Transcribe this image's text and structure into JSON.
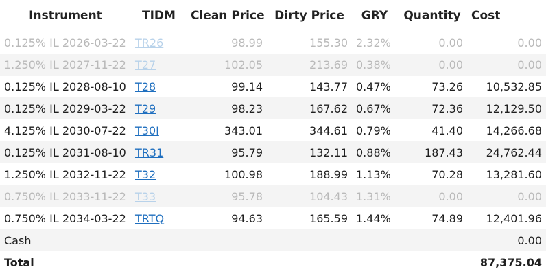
{
  "table": {
    "headers": [
      "Instrument",
      "TIDM",
      "Clean Price",
      "Dirty Price",
      "GRY",
      "Quantity",
      "Cost"
    ],
    "rows": [
      {
        "instrument": "0.125% IL 2026-03-22",
        "tidm": "TR26",
        "clean": "98.99",
        "dirty": "155.30",
        "gry": "2.32%",
        "qty": "0.00",
        "cost": "0.00",
        "muted": true
      },
      {
        "instrument": "1.250% IL 2027-11-22",
        "tidm": "T27",
        "clean": "102.05",
        "dirty": "213.69",
        "gry": "0.38%",
        "qty": "0.00",
        "cost": "0.00",
        "muted": true
      },
      {
        "instrument": "0.125% IL 2028-08-10",
        "tidm": "T28",
        "clean": "99.14",
        "dirty": "143.77",
        "gry": "0.47%",
        "qty": "73.26",
        "cost": "10,532.85",
        "muted": false
      },
      {
        "instrument": "0.125% IL 2029-03-22",
        "tidm": "T29",
        "clean": "98.23",
        "dirty": "167.62",
        "gry": "0.67%",
        "qty": "72.36",
        "cost": "12,129.50",
        "muted": false
      },
      {
        "instrument": "4.125% IL 2030-07-22",
        "tidm": "T30I",
        "clean": "343.01",
        "dirty": "344.61",
        "gry": "0.79%",
        "qty": "41.40",
        "cost": "14,266.68",
        "muted": false
      },
      {
        "instrument": "0.125% IL 2031-08-10",
        "tidm": "TR31",
        "clean": "95.79",
        "dirty": "132.11",
        "gry": "0.88%",
        "qty": "187.43",
        "cost": "24,762.44",
        "muted": false
      },
      {
        "instrument": "1.250% IL 2032-11-22",
        "tidm": "T32",
        "clean": "100.98",
        "dirty": "188.99",
        "gry": "1.13%",
        "qty": "70.28",
        "cost": "13,281.60",
        "muted": false
      },
      {
        "instrument": "0.750% IL 2033-11-22",
        "tidm": "T33",
        "clean": "95.78",
        "dirty": "104.43",
        "gry": "1.31%",
        "qty": "0.00",
        "cost": "0.00",
        "muted": true
      },
      {
        "instrument": "0.750% IL 2034-03-22",
        "tidm": "TRTQ",
        "clean": "94.63",
        "dirty": "165.59",
        "gry": "1.44%",
        "qty": "74.89",
        "cost": "12,401.96",
        "muted": false
      }
    ],
    "cash": {
      "label": "Cash",
      "cost": "0.00"
    },
    "total": {
      "label": "Total",
      "cost": "87,375.04"
    }
  },
  "colors": {
    "link": "#1f6fbf",
    "muted_text": "#b9b9b9",
    "muted_link": "#b8d2ea",
    "stripe": "#f4f4f4"
  }
}
